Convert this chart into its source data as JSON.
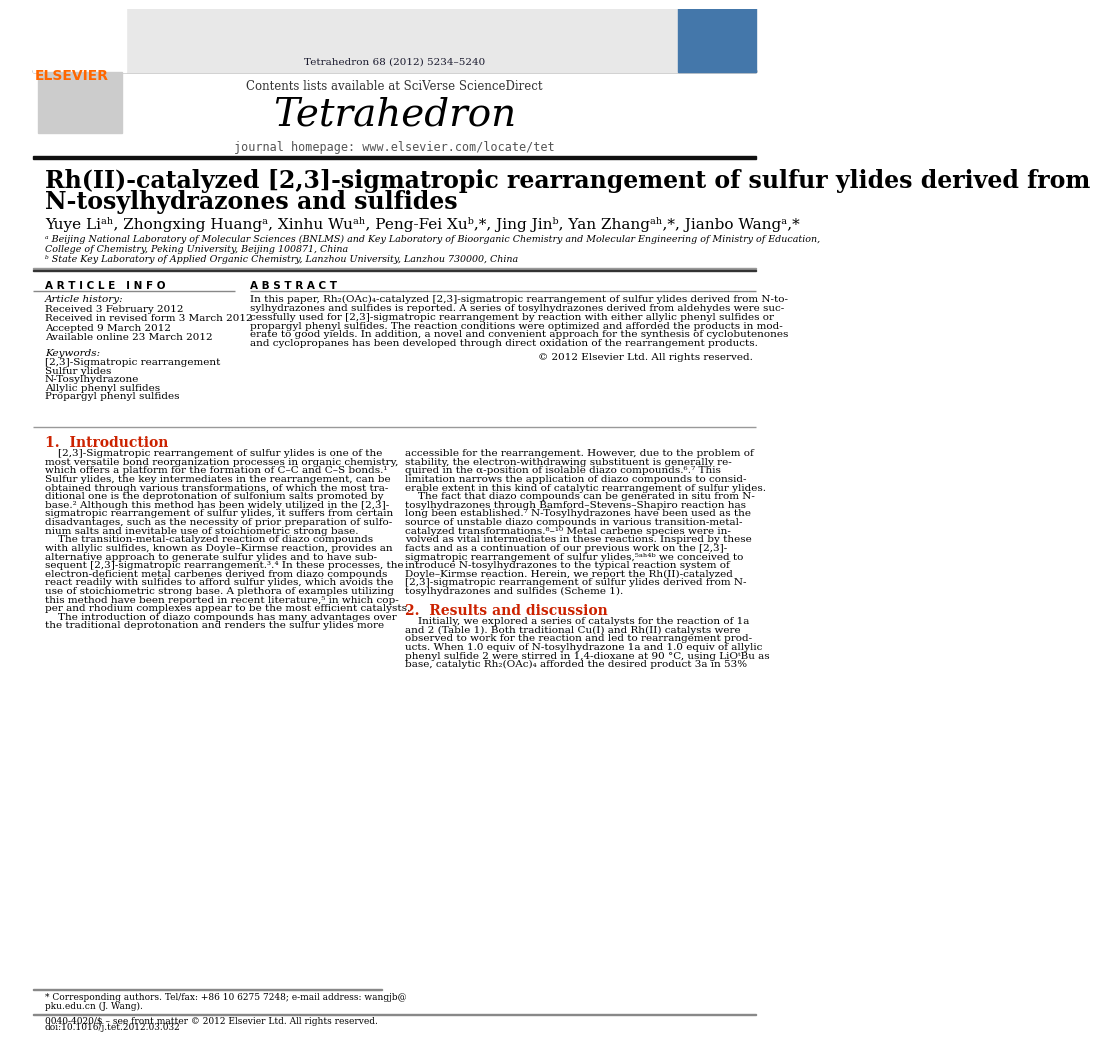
{
  "bg_color": "#ffffff",
  "top_citation": "Tetrahedron 68 (2012) 5234–5240",
  "journal_title": "Tetrahedron",
  "contents_text": "Contents lists available at SciVerse ScienceDirect",
  "homepage_text": "journal homepage: www.elsevier.com/locate/tet",
  "elsevier_color": "#FF6600",
  "sciverse_color": "#0070C0",
  "header_bg": "#E8E8E8",
  "dark_bar_color": "#1a1a2e",
  "paper_title_line1": "Rh(II)-catalyzed [2,3]-sigmatropic rearrangement of sulfur ylides derived from",
  "paper_title_line2": "N-tosylhydrazones and sulfides",
  "affil_a": "ᵃ Beijing National Laboratory of Molecular Sciences (BNLMS) and Key Laboratory of Bioorganic Chemistry and Molecular Engineering of Ministry of Education,",
  "affil_a2": "College of Chemistry, Peking University, Beijing 100871, China",
  "affil_b": "ᵇ State Key Laboratory of Applied Organic Chemistry, Lanzhou University, Lanzhou 730000, China",
  "article_info_header": "A R T I C L E   I N F O",
  "abstract_header": "A B S T R A C T",
  "article_history_label": "Article history:",
  "received_1": "Received 3 February 2012",
  "received_revised": "Received in revised form 3 March 2012",
  "accepted": "Accepted 9 March 2012",
  "available": "Available online 23 March 2012",
  "keywords_label": "Keywords:",
  "kw1": "[2,3]-Sigmatropic rearrangement",
  "kw2": "Sulfur ylides",
  "kw3": "N-Tosylhydrazone",
  "kw4": "Allylic phenyl sulfides",
  "kw5": "Propargyl phenyl sulfides",
  "copyright_text": "© 2012 Elsevier Ltd. All rights reserved.",
  "intro_header": "1.  Introduction",
  "results_header": "2.  Results and discussion",
  "footer_text1": "* Corresponding authors. Tel/fax: +86 10 6275 7248; e-mail address: wangjb@",
  "footer_text1b": "pku.edu.cn (J. Wang).",
  "footer_text2": "0040-4020/$ – see front matter © 2012 Elsevier Ltd. All rights reserved.",
  "footer_text3": "doi:10.1016/j.tet.2012.03.032"
}
